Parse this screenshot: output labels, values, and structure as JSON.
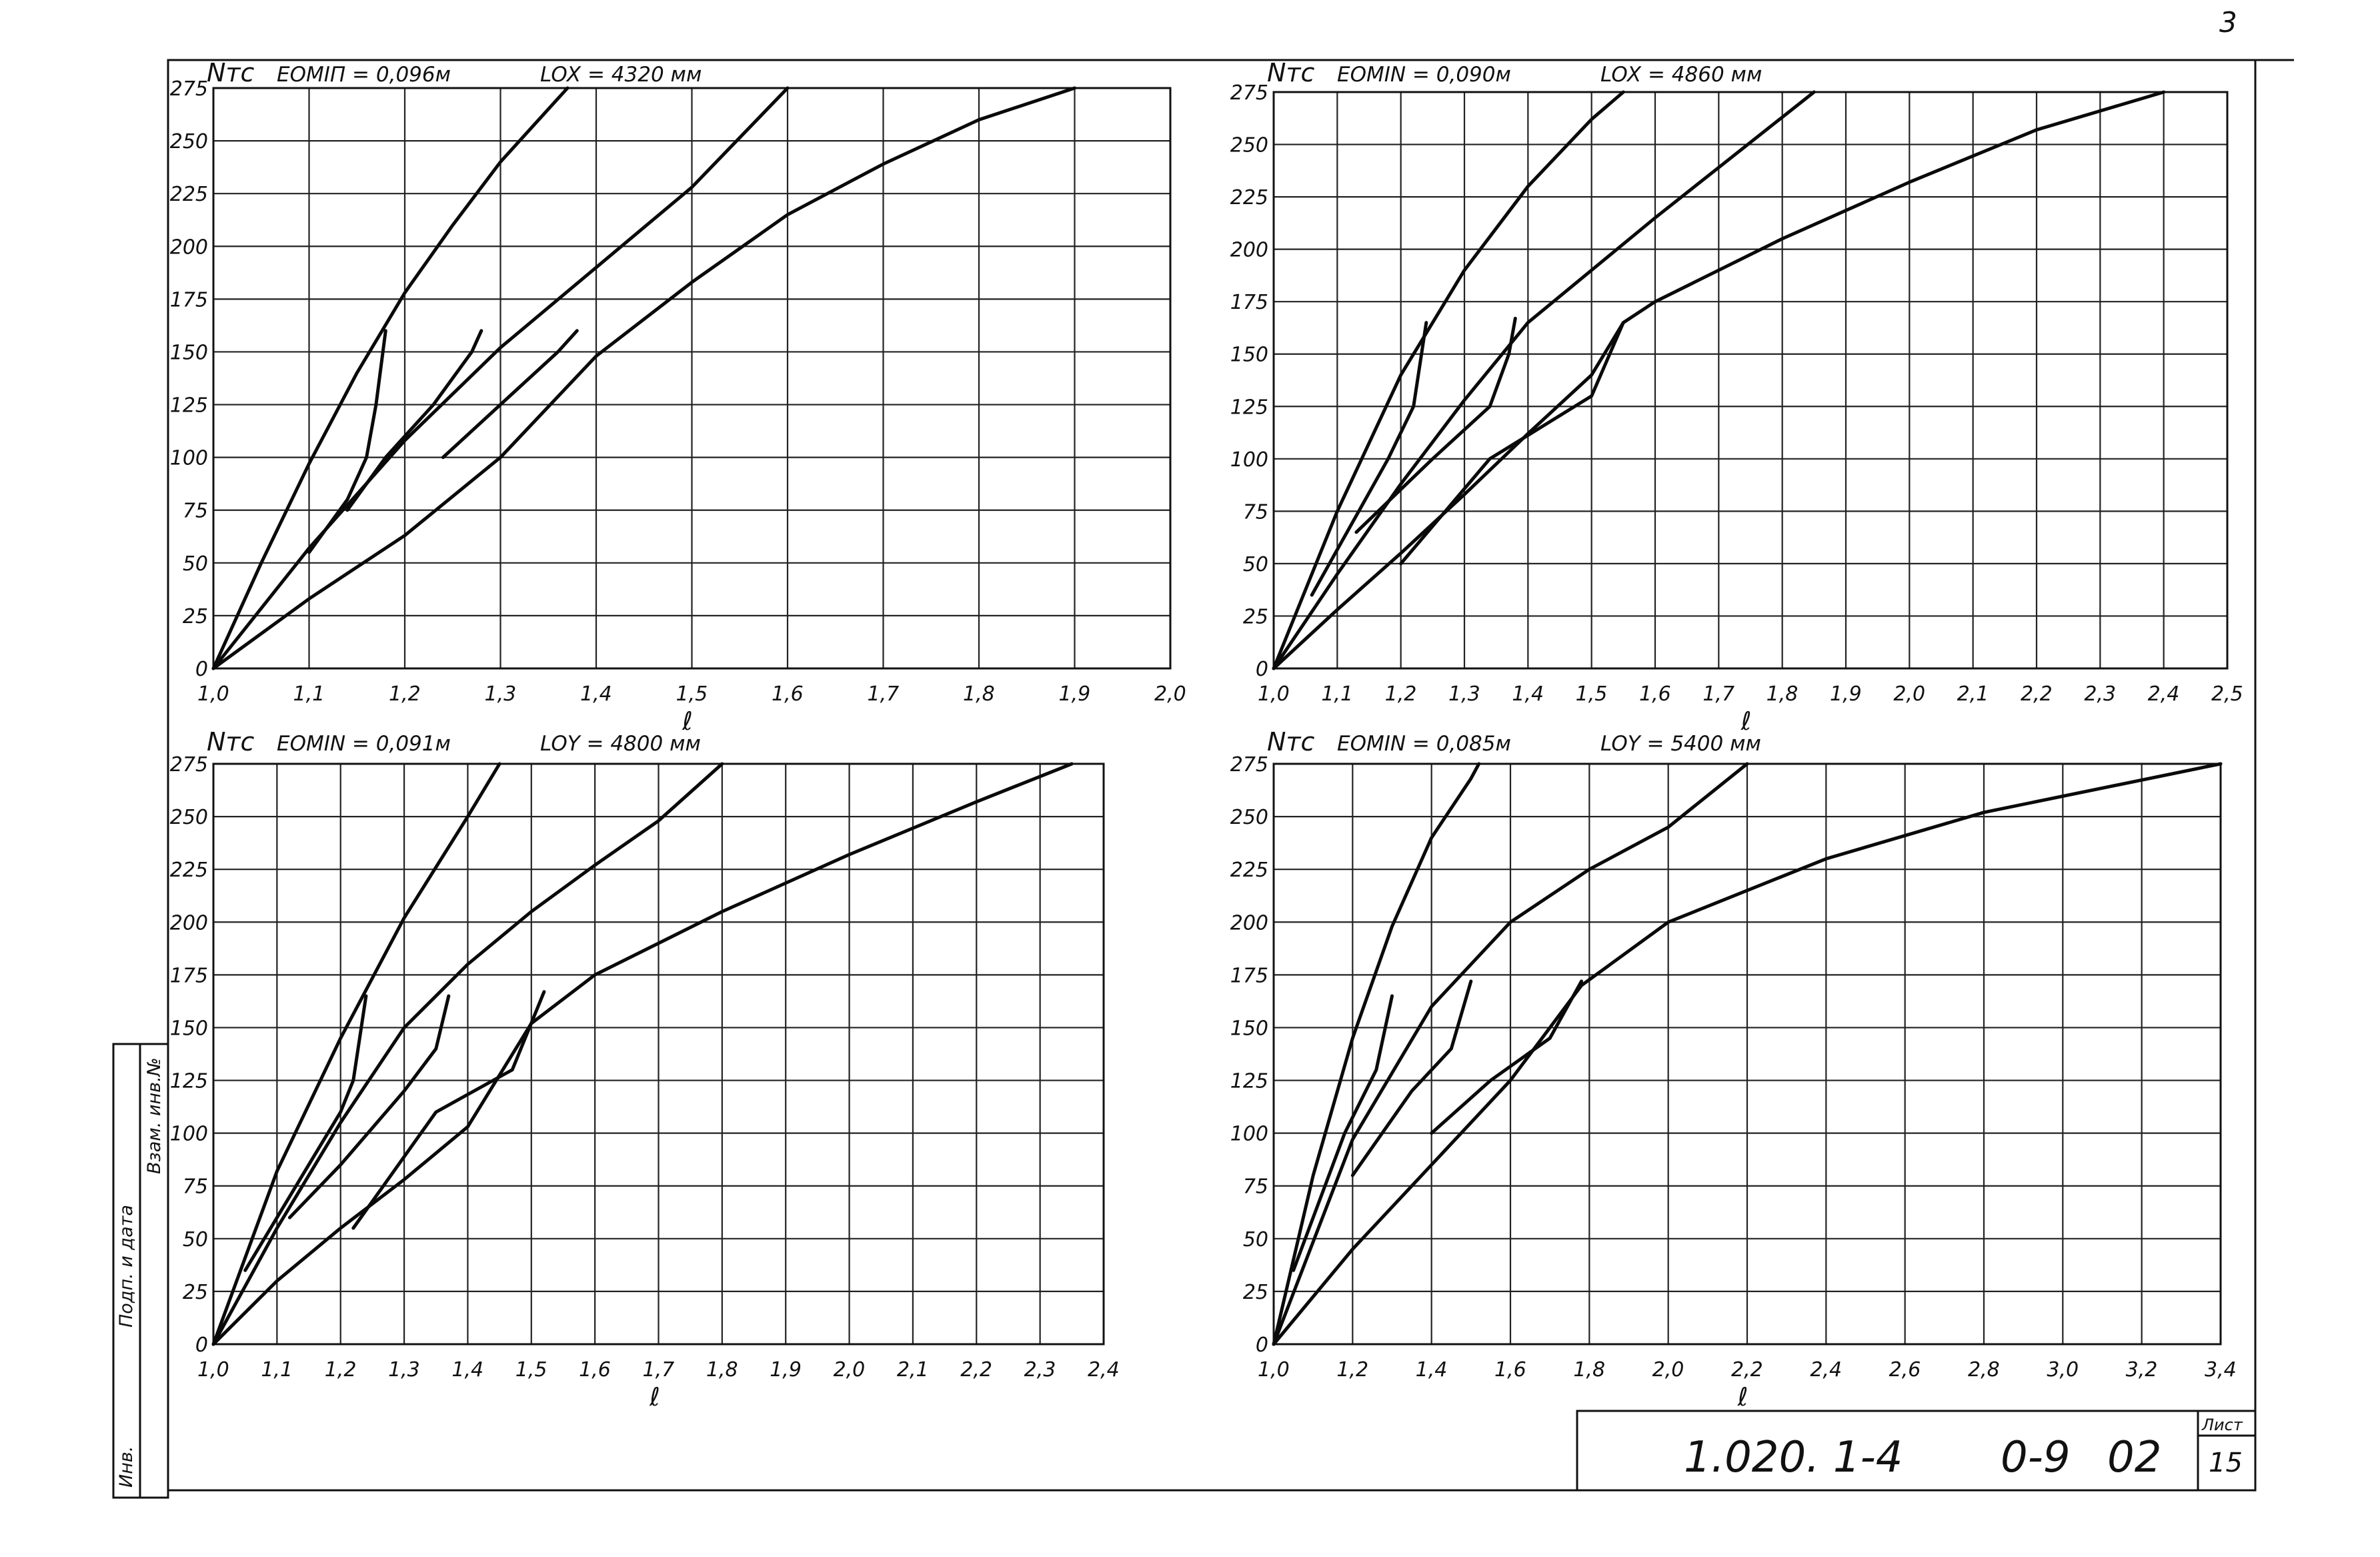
{
  "sheet": {
    "corner_mark": "3",
    "stamp_code": "1.020. 1-4",
    "stamp_series": "0-9",
    "stamp_part": "02",
    "list_label": "Лист",
    "list_number": "15",
    "side_labels": [
      "Инв.",
      "Подп. и дата",
      "Взам. инв.№"
    ]
  },
  "chart_data": [
    {
      "type": "line",
      "ylabel": "Nтс",
      "xlabel": "ℓ",
      "param_emin": "EOMIП = 0,096м",
      "param_length": "LOX = 4320 мм",
      "xlim": [
        1.0,
        2.0
      ],
      "ylim": [
        0,
        275
      ],
      "x_ticks": [
        "1,0",
        "1,1",
        "1,2",
        "1,3",
        "1,4",
        "1,5",
        "1,6",
        "1,7",
        "1,8",
        "1,9",
        "2,0"
      ],
      "y_ticks": [
        "0",
        "25",
        "50",
        "75",
        "100",
        "125",
        "150",
        "175",
        "200",
        "225",
        "250",
        "275"
      ],
      "series": [
        {
          "points": [
            [
              1.0,
              0
            ],
            [
              1.05,
              50
            ],
            [
              1.1,
              97
            ],
            [
              1.15,
              140
            ],
            [
              1.2,
              178
            ],
            [
              1.25,
              210
            ],
            [
              1.3,
              240
            ],
            [
              1.35,
              265
            ],
            [
              1.37,
              275
            ]
          ]
        },
        {
          "points": [
            [
              1.0,
              0
            ],
            [
              1.1,
              57
            ],
            [
              1.2,
              108
            ],
            [
              1.3,
              152
            ],
            [
              1.4,
              190
            ],
            [
              1.5,
              228
            ],
            [
              1.6,
              275
            ]
          ]
        },
        {
          "points": [
            [
              1.0,
              0
            ],
            [
              1.1,
              33
            ],
            [
              1.2,
              63
            ],
            [
              1.3,
              100
            ],
            [
              1.4,
              148
            ],
            [
              1.5,
              183
            ],
            [
              1.6,
              215
            ],
            [
              1.7,
              239
            ],
            [
              1.8,
              260
            ],
            [
              1.9,
              275
            ]
          ]
        },
        {
          "points": [
            [
              1.1,
              55
            ],
            [
              1.14,
              80
            ],
            [
              1.16,
              100
            ],
            [
              1.17,
              125
            ],
            [
              1.18,
              160
            ]
          ]
        },
        {
          "points": [
            [
              1.14,
              75
            ],
            [
              1.18,
              100
            ],
            [
              1.23,
              125
            ],
            [
              1.27,
              150
            ],
            [
              1.28,
              160
            ]
          ]
        },
        {
          "points": [
            [
              1.24,
              100
            ],
            [
              1.3,
              125
            ],
            [
              1.36,
              150
            ],
            [
              1.38,
              160
            ]
          ]
        }
      ]
    },
    {
      "type": "line",
      "ylabel": "Nтс",
      "xlabel": "ℓ",
      "param_emin": "EOMIN = 0,090м",
      "param_length": "LOX = 4860 мм",
      "xlim": [
        1.0,
        2.5
      ],
      "ylim": [
        0,
        275
      ],
      "x_ticks": [
        "1,0",
        "1,1",
        "1,2",
        "1,3",
        "1,4",
        "1,5",
        "1,6",
        "1,7",
        "1,8",
        "1,9",
        "2,0",
        "2,1",
        "2,2",
        "2,3",
        "2,4",
        "2,5"
      ],
      "y_ticks": [
        "0",
        "25",
        "50",
        "75",
        "100",
        "125",
        "150",
        "175",
        "200",
        "225",
        "250",
        "275"
      ],
      "series": [
        {
          "points": [
            [
              1.0,
              0
            ],
            [
              1.1,
              75
            ],
            [
              1.2,
              140
            ],
            [
              1.3,
              190
            ],
            [
              1.4,
              230
            ],
            [
              1.5,
              262
            ],
            [
              1.55,
              275
            ]
          ]
        },
        {
          "points": [
            [
              1.0,
              0
            ],
            [
              1.1,
              45
            ],
            [
              1.2,
              88
            ],
            [
              1.3,
              128
            ],
            [
              1.4,
              165
            ],
            [
              1.6,
              215
            ],
            [
              1.85,
              275
            ]
          ]
        },
        {
          "points": [
            [
              1.0,
              0
            ],
            [
              1.1,
              28
            ],
            [
              1.2,
              55
            ],
            [
              1.3,
              83
            ],
            [
              1.4,
              112
            ],
            [
              1.5,
              140
            ],
            [
              1.55,
              165
            ],
            [
              1.6,
              175
            ],
            [
              1.8,
              205
            ],
            [
              2.0,
              232
            ],
            [
              2.2,
              257
            ],
            [
              2.4,
              275
            ]
          ]
        },
        {
          "points": [
            [
              1.06,
              35
            ],
            [
              1.18,
              100
            ],
            [
              1.22,
              125
            ],
            [
              1.24,
              165
            ]
          ]
        },
        {
          "points": [
            [
              1.13,
              65
            ],
            [
              1.25,
              100
            ],
            [
              1.34,
              125
            ],
            [
              1.37,
              150
            ],
            [
              1.38,
              167
            ]
          ]
        },
        {
          "points": [
            [
              1.2,
              50
            ],
            [
              1.34,
              100
            ],
            [
              1.5,
              130
            ],
            [
              1.55,
              165
            ]
          ]
        }
      ]
    },
    {
      "type": "line",
      "ylabel": "Nтс",
      "xlabel": "ℓ",
      "param_emin": "EOMIN = 0,091м",
      "param_length": "LOY = 4800 мм",
      "xlim": [
        1.0,
        2.4
      ],
      "ylim": [
        0,
        275
      ],
      "x_ticks": [
        "1,0",
        "1,1",
        "1,2",
        "1,3",
        "1,4",
        "1,5",
        "1,6",
        "1,7",
        "1,8",
        "1,9",
        "2,0",
        "2,1",
        "2,2",
        "2,3",
        "2,4"
      ],
      "y_ticks": [
        "0",
        "25",
        "50",
        "75",
        "100",
        "125",
        "150",
        "175",
        "200",
        "225",
        "250",
        "275"
      ],
      "series": [
        {
          "points": [
            [
              1.0,
              0
            ],
            [
              1.1,
              82
            ],
            [
              1.2,
              145
            ],
            [
              1.3,
              202
            ],
            [
              1.4,
              250
            ],
            [
              1.45,
              275
            ]
          ]
        },
        {
          "points": [
            [
              1.0,
              0
            ],
            [
              1.1,
              55
            ],
            [
              1.2,
              105
            ],
            [
              1.3,
              150
            ],
            [
              1.4,
              180
            ],
            [
              1.5,
              205
            ],
            [
              1.6,
              227
            ],
            [
              1.7,
              248
            ],
            [
              1.8,
              275
            ]
          ]
        },
        {
          "points": [
            [
              1.0,
              0
            ],
            [
              1.1,
              30
            ],
            [
              1.2,
              55
            ],
            [
              1.3,
              78
            ],
            [
              1.4,
              103
            ],
            [
              1.5,
              152
            ],
            [
              1.6,
              175
            ],
            [
              1.8,
              205
            ],
            [
              2.0,
              232
            ],
            [
              2.2,
              257
            ],
            [
              2.35,
              275
            ]
          ]
        },
        {
          "points": [
            [
              1.05,
              35
            ],
            [
              1.15,
              85
            ],
            [
              1.2,
              110
            ],
            [
              1.22,
              125
            ],
            [
              1.24,
              165
            ]
          ]
        },
        {
          "points": [
            [
              1.12,
              60
            ],
            [
              1.2,
              85
            ],
            [
              1.3,
              120
            ],
            [
              1.35,
              140
            ],
            [
              1.37,
              165
            ]
          ]
        },
        {
          "points": [
            [
              1.22,
              55
            ],
            [
              1.35,
              110
            ],
            [
              1.47,
              130
            ],
            [
              1.52,
              167
            ]
          ]
        }
      ]
    },
    {
      "type": "line",
      "ylabel": "Nтс",
      "xlabel": "ℓ",
      "param_emin": "EOMIN = 0,085м",
      "param_length": "LOY = 5400 мм",
      "xlim": [
        1.0,
        3.4
      ],
      "ylim": [
        0,
        275
      ],
      "x_ticks": [
        "1,0",
        "1,2",
        "1,4",
        "1,6",
        "1,8",
        "2,0",
        "2,2",
        "2,4",
        "2,6",
        "2,8",
        "3,0",
        "3,2",
        "3,4"
      ],
      "y_ticks": [
        "0",
        "25",
        "50",
        "75",
        "100",
        "125",
        "150",
        "175",
        "200",
        "225",
        "250",
        "275"
      ],
      "series": [
        {
          "points": [
            [
              1.0,
              0
            ],
            [
              1.1,
              80
            ],
            [
              1.2,
              145
            ],
            [
              1.3,
              198
            ],
            [
              1.4,
              240
            ],
            [
              1.5,
              268
            ],
            [
              1.52,
              275
            ]
          ]
        },
        {
          "points": [
            [
              1.0,
              0
            ],
            [
              1.2,
              97
            ],
            [
              1.4,
              160
            ],
            [
              1.6,
              200
            ],
            [
              1.8,
              225
            ],
            [
              2.0,
              245
            ],
            [
              2.2,
              275
            ]
          ]
        },
        {
          "points": [
            [
              1.0,
              0
            ],
            [
              1.2,
              45
            ],
            [
              1.4,
              85
            ],
            [
              1.6,
              125
            ],
            [
              1.7,
              150
            ],
            [
              1.78,
              170
            ],
            [
              2.0,
              200
            ],
            [
              2.4,
              230
            ],
            [
              2.8,
              252
            ],
            [
              3.4,
              275
            ]
          ]
        },
        {
          "points": [
            [
              1.05,
              35
            ],
            [
              1.18,
              100
            ],
            [
              1.26,
              130
            ],
            [
              1.3,
              165
            ]
          ]
        },
        {
          "points": [
            [
              1.2,
              80
            ],
            [
              1.35,
              120
            ],
            [
              1.45,
              140
            ],
            [
              1.5,
              172
            ]
          ]
        },
        {
          "points": [
            [
              1.4,
              100
            ],
            [
              1.55,
              125
            ],
            [
              1.7,
              145
            ],
            [
              1.78,
              172
            ]
          ]
        }
      ]
    }
  ]
}
